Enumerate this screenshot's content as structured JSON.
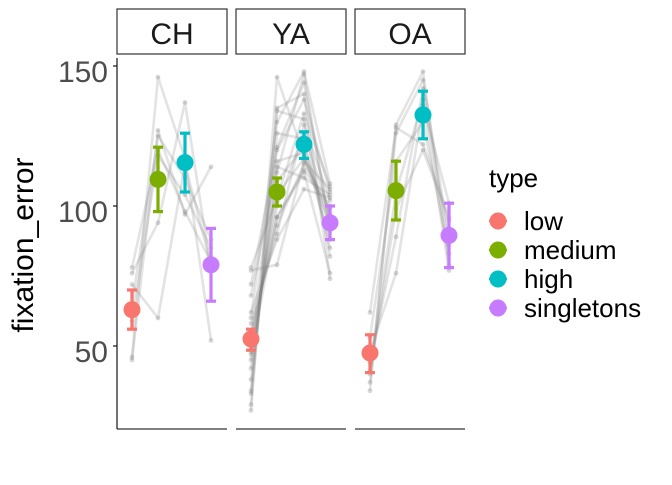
{
  "chart_data": {
    "type": "scatter",
    "ylabel": "fixation_error",
    "ylim": [
      20,
      157
    ],
    "yticks": [
      50,
      100,
      150
    ],
    "legend": {
      "title": "type",
      "position": "right",
      "items": [
        "low",
        "medium",
        "high",
        "singletons"
      ]
    },
    "series_colors": {
      "low": "#F8766D",
      "medium": "#7CAE00",
      "high": "#00BFC4",
      "singletons": "#C77CFF"
    },
    "categories": [
      "low",
      "medium",
      "high",
      "singletons"
    ],
    "panels": [
      {
        "name": "CH",
        "summary": [
          {
            "type": "low",
            "mean": 63,
            "lo": 56,
            "hi": 70
          },
          {
            "type": "medium",
            "mean": 109.5,
            "lo": 98,
            "hi": 121
          },
          {
            "type": "high",
            "mean": 115.5,
            "lo": 105,
            "hi": 126
          },
          {
            "type": "singletons",
            "mean": 79,
            "lo": 66,
            "hi": 92
          }
        ],
        "subjects": [
          [
            46,
            146,
            117,
            52
          ],
          [
            45,
            127,
            97,
            114
          ],
          [
            76,
            94,
            137,
            77
          ],
          [
            78,
            120,
            98,
            80
          ],
          [
            59,
            118,
            104,
            85
          ],
          [
            72,
            60,
            115,
            79
          ],
          [
            65,
            125,
            110,
            88
          ]
        ]
      },
      {
        "name": "YA",
        "summary": [
          {
            "type": "low",
            "mean": 52.5,
            "lo": 48.5,
            "hi": 56
          },
          {
            "type": "medium",
            "mean": 105,
            "lo": 100,
            "hi": 110
          },
          {
            "type": "high",
            "mean": 122,
            "lo": 117,
            "hi": 126.5
          },
          {
            "type": "singletons",
            "mean": 94,
            "lo": 88,
            "hi": 100
          }
        ],
        "subjects": [
          [
            27,
            146,
            118,
            96
          ],
          [
            29,
            135,
            140,
            74
          ],
          [
            33,
            134,
            131,
            82
          ],
          [
            34,
            126,
            124,
            85
          ],
          [
            38,
            116,
            119,
            88
          ],
          [
            42,
            112,
            147,
            91
          ],
          [
            45,
            109,
            121,
            92
          ],
          [
            48,
            104,
            117,
            94
          ],
          [
            50,
            100,
            126,
            97
          ],
          [
            53,
            96,
            113,
            99
          ],
          [
            55,
            93,
            115,
            100
          ],
          [
            58,
            90,
            129,
            102
          ],
          [
            62,
            88,
            106,
            103
          ],
          [
            68,
            114,
            110,
            104
          ],
          [
            72,
            120,
            138,
            105
          ],
          [
            77,
            79,
            116,
            106
          ],
          [
            78,
            103,
            133,
            107
          ],
          [
            60,
            130,
            148,
            108
          ],
          [
            47,
            96,
            112,
            76
          ],
          [
            52,
            121,
            144,
            93
          ]
        ]
      },
      {
        "name": "OA",
        "summary": [
          {
            "type": "low",
            "mean": 47.5,
            "lo": 40.5,
            "hi": 54
          },
          {
            "type": "medium",
            "mean": 105.5,
            "lo": 95,
            "hi": 116
          },
          {
            "type": "high",
            "mean": 132.5,
            "lo": 124,
            "hi": 141
          },
          {
            "type": "singletons",
            "mean": 89.5,
            "lo": 78,
            "hi": 101
          }
        ],
        "subjects": [
          [
            34,
            129,
            148,
            79
          ],
          [
            37,
            126,
            145,
            89
          ],
          [
            41,
            105,
            138,
            77
          ],
          [
            44,
            89,
            142,
            86
          ],
          [
            62,
            128,
            122,
            96
          ],
          [
            48,
            76,
            136,
            101
          ],
          [
            53,
            116,
            130,
            83
          ],
          [
            40,
            99,
            120,
            95
          ]
        ]
      }
    ]
  }
}
